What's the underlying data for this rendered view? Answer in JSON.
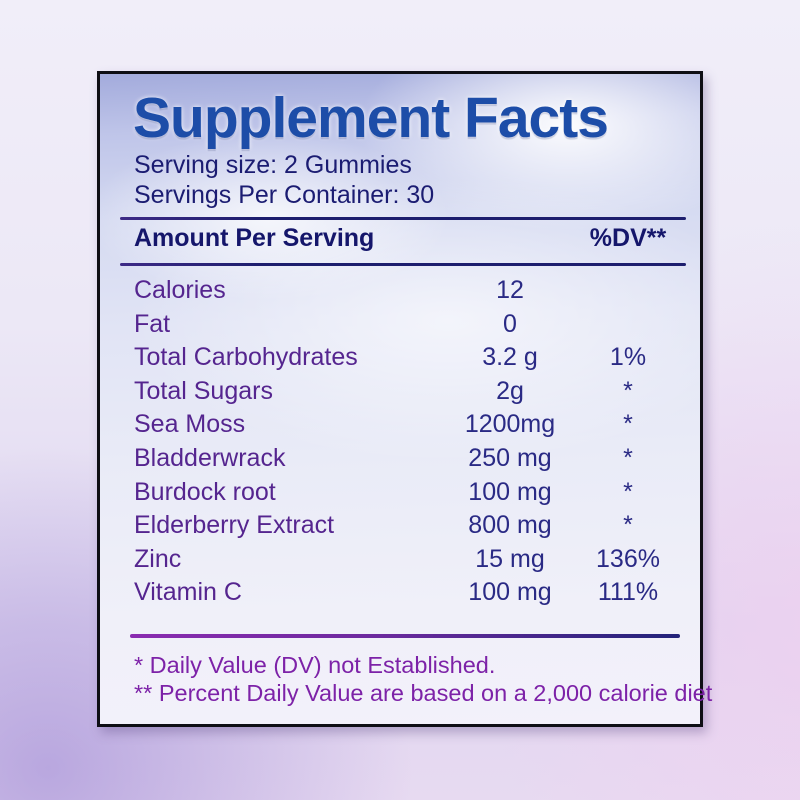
{
  "label": {
    "title": "Supplement Facts",
    "serving_size": "Serving size: 2 Gummies",
    "servings_per_container": "Servings Per Container: 30",
    "table": {
      "header": {
        "amount_col": "Amount Per Serving",
        "dv_col": "%DV**"
      },
      "rows": [
        {
          "name": "Calories",
          "amount": "12",
          "dv": ""
        },
        {
          "name": "Fat",
          "amount": "0",
          "dv": ""
        },
        {
          "name": "Total Carbohydrates",
          "amount": "3.2 g",
          "dv": "1%"
        },
        {
          "name": "Total Sugars",
          "amount": "2g",
          "dv": "*"
        },
        {
          "name": "Sea Moss",
          "amount": "1200mg",
          "dv": "*"
        },
        {
          "name": "Bladderwrack",
          "amount": "250 mg",
          "dv": "*"
        },
        {
          "name": "Burdock root",
          "amount": "100 mg",
          "dv": "*"
        },
        {
          "name": "Elderberry Extract",
          "amount": "800 mg",
          "dv": "*"
        },
        {
          "name": "Zinc",
          "amount": "15 mg",
          "dv": "136%"
        },
        {
          "name": "Vitamin C",
          "amount": "100 mg",
          "dv": "111%"
        }
      ]
    },
    "footnotes": [
      "* Daily Value (DV) not Established.",
      "** Percent Daily Value are based on a 2,000 calorie diet"
    ],
    "colors": {
      "title_blue": "#1d4da8",
      "navy_text": "#1b1c72",
      "header_navy": "#15166b",
      "nutrient_purple": "#55258f",
      "amount_navy": "#2a2a85",
      "footnote_purple": "#7d22a8",
      "rule_navy": "#1d1e6e",
      "rule_purple": "#8a2bb0",
      "border_black": "#0e0e14"
    }
  }
}
